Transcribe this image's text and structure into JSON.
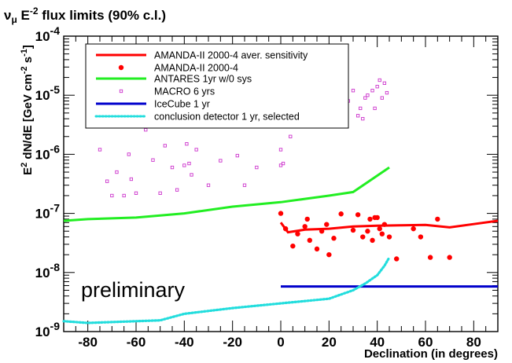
{
  "chart_data": {
    "type": "line",
    "title": {
      "prefix": "ν",
      "sub": "μ",
      "mid": " E",
      "sup": "-2",
      "rest": " flux limits (90% c.l.)"
    },
    "xlabel": "Declination (in degrees)",
    "ylabel": {
      "a": "E",
      "b": "2",
      "c": " dN/dE [GeV cm",
      "d": "-2",
      "e": " s",
      "f": "-1",
      "g": "]"
    },
    "xlim": [
      -90,
      90
    ],
    "ylim": [
      1e-09,
      0.0001
    ],
    "yscale": "log",
    "grid": false,
    "legend_position": "top-left",
    "x_ticks": [
      -80,
      -60,
      -40,
      -20,
      0,
      20,
      40,
      60,
      80
    ],
    "x_tick_labels": [
      "-80",
      "-60",
      "-40",
      "-20",
      "0",
      "20",
      "40",
      "60",
      "80"
    ],
    "y_ticks": [
      1e-09,
      1e-08,
      1e-07,
      1e-06,
      1e-05,
      0.0001
    ],
    "y_tick_labels": [
      {
        "base": "10",
        "exp": "-9"
      },
      {
        "base": "10",
        "exp": "-8"
      },
      {
        "base": "10",
        "exp": "-7"
      },
      {
        "base": "10",
        "exp": "-6"
      },
      {
        "base": "10",
        "exp": "-5"
      },
      {
        "base": "10",
        "exp": "-4"
      }
    ],
    "annotation": "preliminary",
    "series": [
      {
        "name": "AMANDA-II 2000-4 aver. sensitivity",
        "style": "line",
        "color": "#ff0000",
        "x": [
          0,
          3,
          10,
          20,
          30,
          40,
          50,
          60,
          70,
          80,
          90
        ],
        "y": [
          7e-08,
          4.8e-08,
          5.3e-08,
          5.5e-08,
          6e-08,
          6.2e-08,
          6.3e-08,
          6.4e-08,
          5.8e-08,
          6.6e-08,
          7.5e-08
        ]
      },
      {
        "name": "AMANDA-II 2000-4",
        "style": "dots",
        "color": "#ff0000",
        "x": [
          0,
          2,
          5,
          7,
          10,
          11,
          12,
          15,
          17,
          19,
          20,
          22,
          25,
          30,
          32,
          34,
          36,
          37,
          38,
          39,
          40,
          41,
          42,
          43,
          45,
          48,
          55,
          58,
          62,
          65,
          70
        ],
        "y": [
          1e-07,
          5.5e-08,
          2.8e-08,
          4.5e-08,
          6e-08,
          8e-08,
          3.5e-08,
          2.5e-08,
          5e-08,
          6.5e-08,
          2e-08,
          3.8e-08,
          9.8e-08,
          5.2e-08,
          9.5e-08,
          4e-08,
          5e-08,
          8e-08,
          3.5e-08,
          8.5e-08,
          8.5e-08,
          5.5e-08,
          4.5e-08,
          6.5e-08,
          4e-08,
          1.7e-08,
          5.5e-08,
          4e-08,
          1.8e-08,
          8e-08,
          1.8e-08
        ]
      },
      {
        "name": "ANTARES 1yr w/0 sys",
        "style": "line",
        "color": "#22ee22",
        "x": [
          -90,
          -80,
          -60,
          -40,
          -20,
          0,
          20,
          30,
          45
        ],
        "y": [
          7.5e-08,
          8e-08,
          8.5e-08,
          1e-07,
          1.3e-07,
          1.55e-07,
          2e-07,
          2.3e-07,
          6e-07
        ]
      },
      {
        "name": "MACRO 6 yrs",
        "style": "squares",
        "color": "#cc33cc",
        "x": [
          -75,
          -72,
          -70,
          -68,
          -65,
          -63,
          -62,
          -60,
          -58,
          -56,
          -53,
          -50,
          -48,
          -45,
          -43,
          -40,
          -39,
          -38,
          -37,
          -35,
          -30,
          -25,
          -18,
          -15,
          -10,
          0,
          0,
          1,
          2,
          4,
          10,
          14,
          20,
          22,
          28,
          30,
          32,
          33,
          34,
          35,
          36,
          38,
          39,
          40,
          41,
          42,
          43,
          44
        ],
        "y": [
          1.2e-06,
          3.5e-07,
          2e-07,
          5e-07,
          2e-07,
          1e-06,
          3.8e-07,
          2.2e-07,
          4e-06,
          2.6e-06,
          8e-07,
          2.2e-07,
          1.4e-06,
          6e-07,
          2.5e-07,
          6.5e-07,
          1.5e-06,
          7e-07,
          4.5e-07,
          1.2e-06,
          3e-07,
          7.8e-07,
          9.5e-07,
          3e-07,
          6e-07,
          6.5e-07,
          1.2e-06,
          7e-07,
          6e-06,
          2e-06,
          3.5e-06,
          6e-06,
          9e-06,
          3e-06,
          8e-06,
          1.2e-05,
          4.5e-06,
          6e-06,
          4e-06,
          9e-06,
          1e-05,
          1.2e-05,
          6e-06,
          1.4e-05,
          1.8e-05,
          9e-06,
          1.6e-05,
          1.1e-05
        ]
      },
      {
        "name": "IceCube 1 yr",
        "style": "line",
        "color": "#0000cc",
        "x": [
          0,
          90
        ],
        "y": [
          5.8e-09,
          5.8e-09
        ]
      },
      {
        "name": "conclusion detector 1 yr, selected",
        "style": "dotted",
        "color": "#22dddd",
        "x": [
          -90,
          -80,
          -60,
          -50,
          -40,
          -20,
          0,
          20,
          30,
          35,
          40,
          43,
          45
        ],
        "y": [
          1.5e-09,
          1.4e-09,
          1.5e-09,
          1.55e-09,
          2e-09,
          2.5e-09,
          3e-09,
          3.6e-09,
          5e-09,
          6.5e-09,
          9e-09,
          1.3e-08,
          1.8e-08
        ]
      }
    ]
  }
}
